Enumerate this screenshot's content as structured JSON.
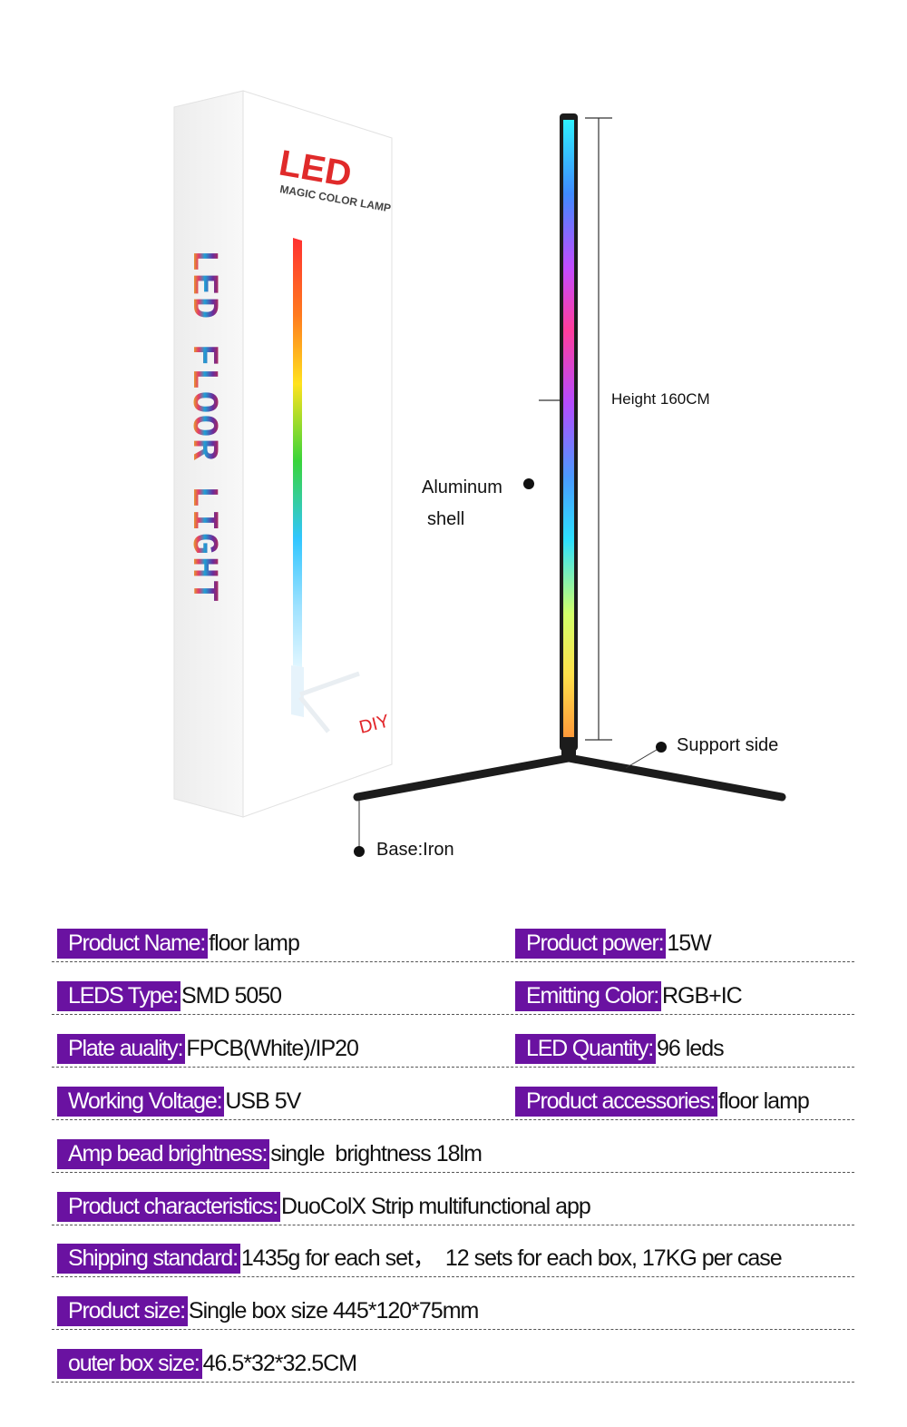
{
  "box": {
    "brand": "LED",
    "subtitle": "MAGIC COLOR LAMP",
    "vertical_title": "LED FLOOR LIGHT",
    "badge": "DIY"
  },
  "annotations": {
    "height": "Height 160CM",
    "shell_line1": "Aluminum",
    "shell_line2": "shell",
    "support": "Support side",
    "base": "Base:Iron"
  },
  "colors": {
    "label_bg": "#6a12a1",
    "lamp_frame": "#1c1c1c"
  },
  "specs": [
    {
      "left": {
        "label": "Product Name:",
        "value": "floor lamp"
      },
      "right": {
        "label": "Product power:",
        "value": "15W"
      }
    },
    {
      "left": {
        "label": "LEDS Type:",
        "value": "SMD 5050"
      },
      "right": {
        "label": "Emitting Color:",
        "value": "RGB+IC"
      }
    },
    {
      "left": {
        "label": "Plate auality:",
        "value": "FPCB(White)/IP20"
      },
      "right": {
        "label": "LED Quantity:",
        "value": "96 leds"
      }
    },
    {
      "left": {
        "label": "Working Voltage:",
        "value": " USB 5V"
      },
      "right": {
        "label": "Product accessories:",
        "value": "floor lamp"
      }
    },
    {
      "left": {
        "label": "Amp bead brightness:",
        "value": "single  brightness 18lm"
      }
    },
    {
      "left": {
        "label": "Product characteristics:",
        "value": "DuoColX Strip multifunctional app"
      }
    },
    {
      "left": {
        "label": "Shipping standard:",
        "value": "1435g for each set，  12 sets for each box, 17KG per case"
      }
    },
    {
      "left": {
        "label": "Product size:",
        "value": "Single box size 445*120*75mm"
      }
    },
    {
      "left": {
        "label": "outer box size:",
        "value": " 46.5*32*32.5CM"
      }
    }
  ]
}
